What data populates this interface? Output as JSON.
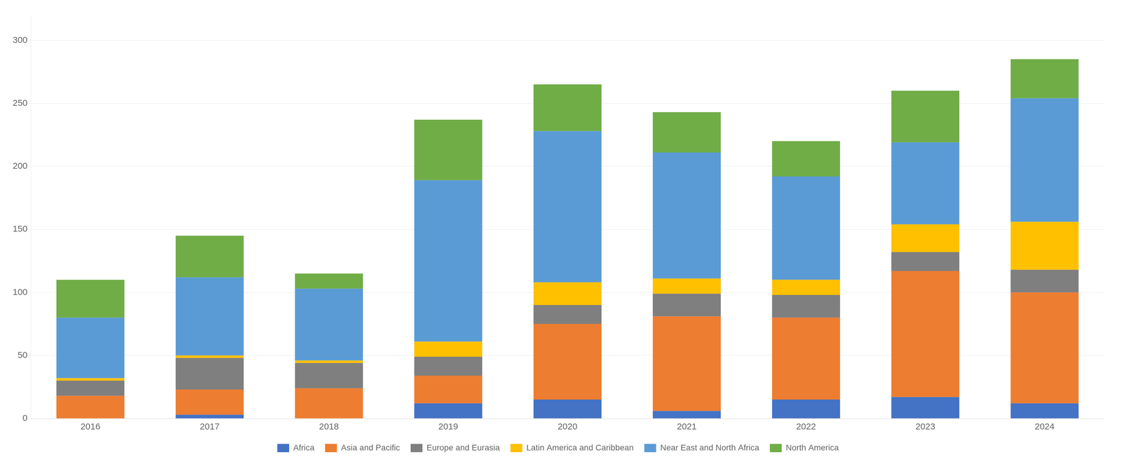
{
  "chart_data": {
    "type": "bar",
    "stacked": true,
    "categories": [
      "2016",
      "2017",
      "2018",
      "2019",
      "2020",
      "2021",
      "2022",
      "2023",
      "2024"
    ],
    "series": [
      {
        "name": "Africa",
        "color": "#4472C4",
        "values": [
          0,
          3,
          0,
          12,
          15,
          6,
          15,
          17,
          12
        ]
      },
      {
        "name": "Asia and Pacific",
        "color": "#ED7D31",
        "values": [
          18,
          20,
          24,
          22,
          60,
          75,
          65,
          100,
          88
        ]
      },
      {
        "name": "Europe and Eurasia",
        "color": "#7F7F7F",
        "values": [
          12,
          25,
          20,
          15,
          15,
          18,
          18,
          15,
          18
        ]
      },
      {
        "name": "Latin America and Caribbean",
        "color": "#FFC000",
        "values": [
          2,
          2,
          2,
          12,
          18,
          12,
          12,
          22,
          38
        ]
      },
      {
        "name": "Near East and North Africa",
        "color": "#5B9BD5",
        "values": [
          48,
          62,
          57,
          128,
          120,
          100,
          82,
          65,
          98
        ]
      },
      {
        "name": "North America",
        "color": "#70AD47",
        "values": [
          30,
          33,
          12,
          48,
          37,
          32,
          28,
          41,
          31
        ]
      }
    ],
    "ylim": [
      0,
      320
    ],
    "yticks": [
      0,
      50,
      100,
      150,
      200,
      250,
      300
    ],
    "grid": true,
    "legend": "bottom"
  }
}
